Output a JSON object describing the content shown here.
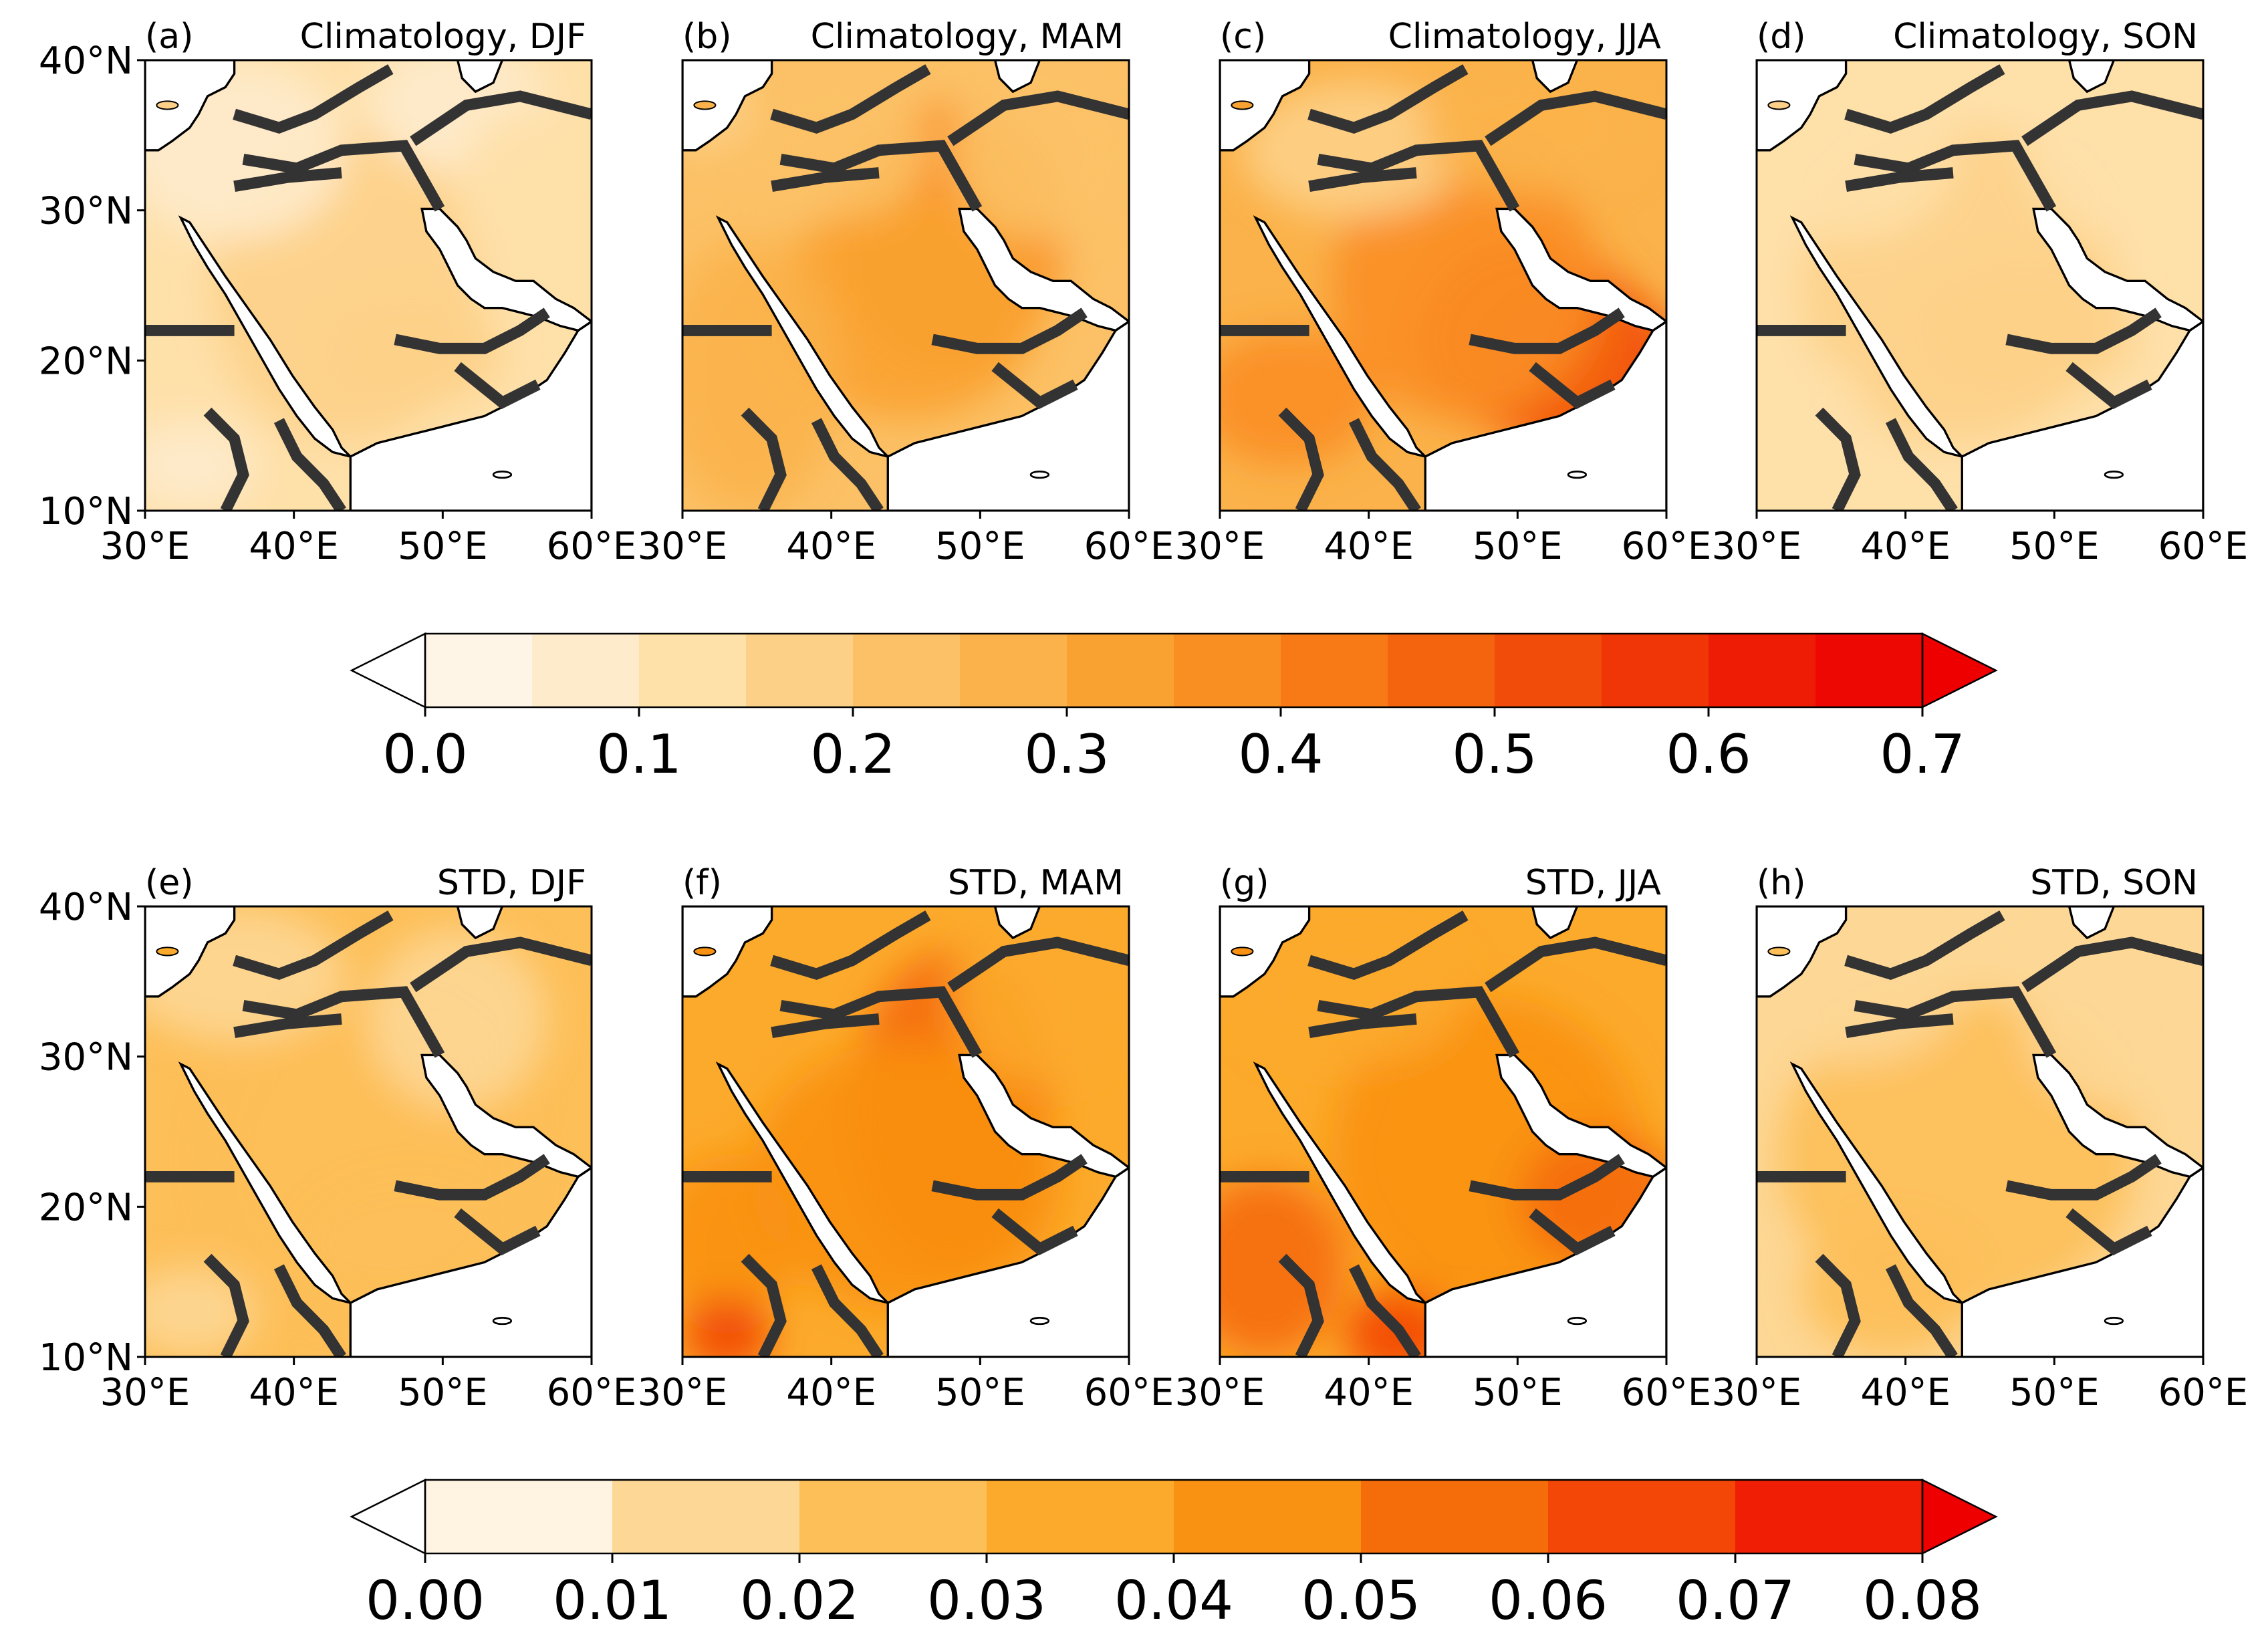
{
  "figure": {
    "rows": [
      {
        "panels": [
          {
            "id": "a",
            "label": "(a)",
            "title": "Climatology, DJF",
            "map_scheme": "clim_djf"
          },
          {
            "id": "b",
            "label": "(b)",
            "title": "Climatology, MAM",
            "map_scheme": "clim_mam"
          },
          {
            "id": "c",
            "label": "(c)",
            "title": "Climatology, JJA",
            "map_scheme": "clim_jja"
          },
          {
            "id": "d",
            "label": "(d)",
            "title": "Climatology, SON",
            "map_scheme": "clim_son"
          }
        ],
        "colorbar": {
          "ticks": [
            "0.0",
            "0.1",
            "0.2",
            "0.3",
            "0.4",
            "0.5",
            "0.6",
            "0.7"
          ],
          "min": 0.0,
          "max": 0.7,
          "step": 0.05,
          "colors": [
            "#fff5e6",
            "#feebcc",
            "#fee0a9",
            "#fdd088",
            "#fcc166",
            "#fbb24a",
            "#faa231",
            "#f98e22",
            "#f77a17",
            "#f4640f",
            "#f24c0a",
            "#f03507",
            "#ef1c05",
            "#ee0803"
          ],
          "extend": "both",
          "under_color": "#ffffff",
          "over_color": "#ee0000"
        }
      },
      {
        "panels": [
          {
            "id": "e",
            "label": "(e)",
            "title": "STD, DJF",
            "map_scheme": "std_djf"
          },
          {
            "id": "f",
            "label": "(f)",
            "title": "STD, MAM",
            "map_scheme": "std_mam"
          },
          {
            "id": "g",
            "label": "(g)",
            "title": "STD, JJA",
            "map_scheme": "std_jja"
          },
          {
            "id": "h",
            "label": "(h)",
            "title": "STD, SON",
            "map_scheme": "std_son"
          }
        ],
        "colorbar": {
          "ticks": [
            "0.00",
            "0.01",
            "0.02",
            "0.03",
            "0.04",
            "0.05",
            "0.06",
            "0.07",
            "0.08"
          ],
          "min": 0.0,
          "max": 0.08,
          "step": 0.01,
          "colors": [
            "#fff4e2",
            "#fdd795",
            "#fdbf58",
            "#fcaa2c",
            "#f99113",
            "#f56c0a",
            "#f24707",
            "#ef1e05"
          ],
          "extend": "both",
          "under_color": "#ffffff",
          "over_color": "#ee0000"
        }
      }
    ],
    "axes": {
      "lat_ticks": [
        "40°N",
        "30°N",
        "20°N",
        "10°N"
      ],
      "lon_ticks": [
        "30°E",
        "40°E",
        "50°E",
        "60°E"
      ],
      "lon_range": [
        30,
        60
      ],
      "lat_range": [
        10,
        40
      ]
    },
    "colors": {
      "land_base": "#fcd7a0",
      "sea": "#ffffff",
      "coast": "#000000",
      "border": "#333333"
    }
  }
}
